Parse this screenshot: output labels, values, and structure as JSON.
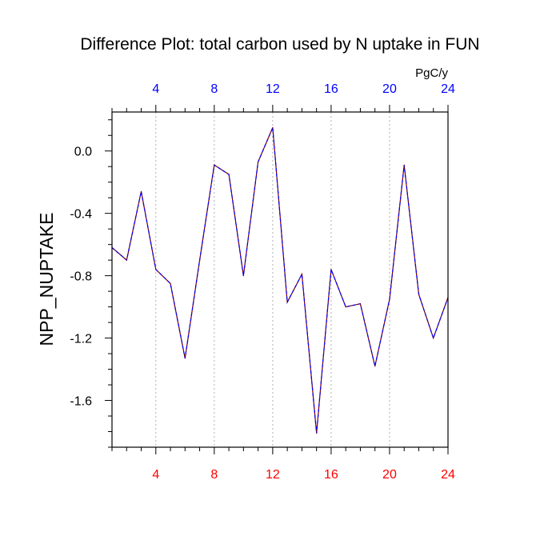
{
  "chart_data": {
    "type": "line",
    "title": "Difference Plot: total carbon used by N uptake in FUN",
    "units": "PgC/y",
    "xlabel": "",
    "ylabel": "NPP_NUPTAKE",
    "xlim": [
      1,
      24
    ],
    "ylim": [
      -1.9,
      0.25
    ],
    "x_ticks": [
      4,
      8,
      12,
      16,
      20,
      24
    ],
    "x_tick_labels": [
      "4",
      "8",
      "12",
      "16",
      "20",
      "24"
    ],
    "y_ticks": [
      0.0,
      -0.4,
      -0.8,
      -1.2,
      -1.6
    ],
    "y_tick_labels": [
      "0.0",
      "-0.4",
      "-0.8",
      "-1.2",
      "-1.6"
    ],
    "grid": "vertical dotted at major x ticks",
    "colors": {
      "top_tick_labels": "#0000ff",
      "bottom_tick_labels": "#ff0000",
      "line_solid": "#7f0000",
      "line_dash": "#0000ff",
      "grid": "#b0b0b0"
    },
    "x": [
      1,
      2,
      3,
      4,
      5,
      6,
      7,
      8,
      9,
      10,
      11,
      12,
      13,
      14,
      15,
      16,
      17,
      18,
      19,
      20,
      21,
      22,
      23,
      24
    ],
    "series": [
      {
        "values": [
          -0.62,
          -0.7,
          -0.26,
          -0.76,
          -0.85,
          -1.33,
          -0.7,
          -0.09,
          -0.15,
          -0.8,
          -0.07,
          0.15,
          -0.97,
          -0.79,
          -1.81,
          -0.76,
          -1.0,
          -0.98,
          -1.38,
          -0.95,
          -0.09,
          -0.92,
          -1.2,
          -0.94
        ]
      }
    ]
  }
}
